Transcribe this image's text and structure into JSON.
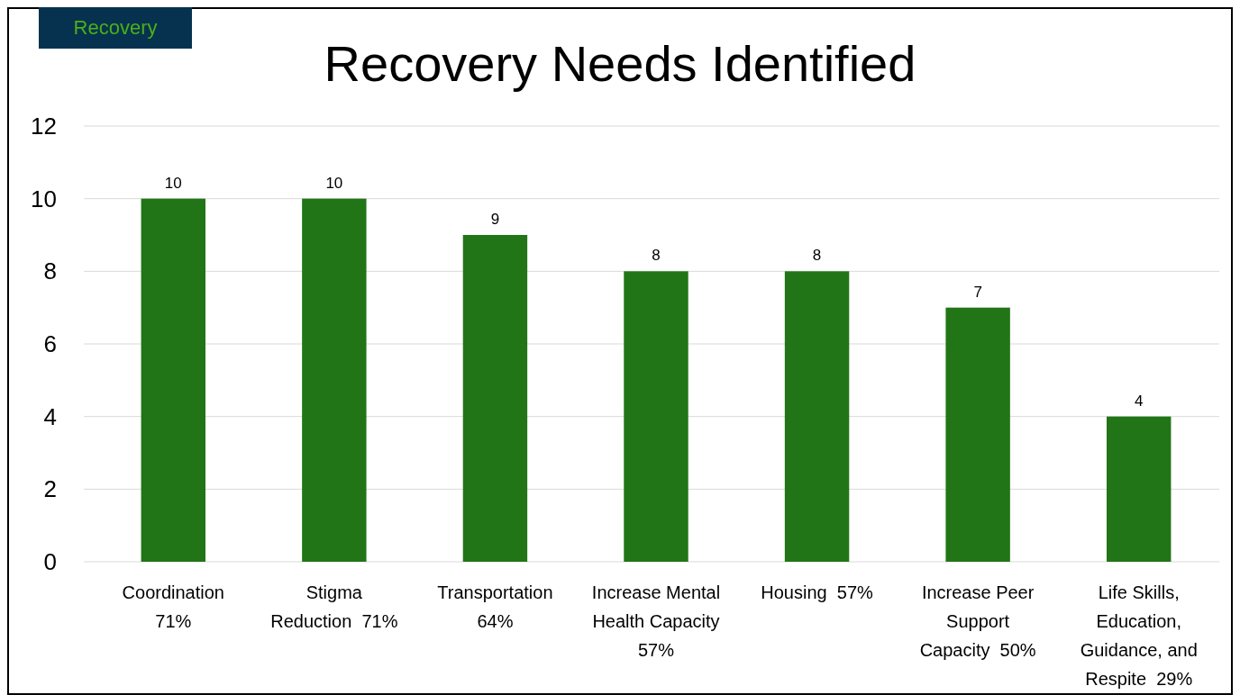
{
  "chart_data": {
    "type": "bar",
    "title": "Recovery Needs Identified",
    "annotations": [
      "Recovery"
    ],
    "categories": [
      "Coordination\n71%",
      "Stigma\nReduction  71%",
      "Transportation\n64%",
      "Increase Mental\nHealth Capacity\n57%",
      "Housing  57%",
      "Increase Peer\nSupport\nCapacity  50%",
      "Life Skills,\nEducation,\nGuidance, and\nRespite  29%"
    ],
    "values": [
      10,
      10,
      9,
      8,
      8,
      7,
      4
    ],
    "color": "#217516",
    "ylim": [
      0,
      12
    ],
    "yticks": [
      0,
      2,
      4,
      6,
      8,
      10,
      12
    ],
    "grid": "y",
    "data_labels": true
  }
}
